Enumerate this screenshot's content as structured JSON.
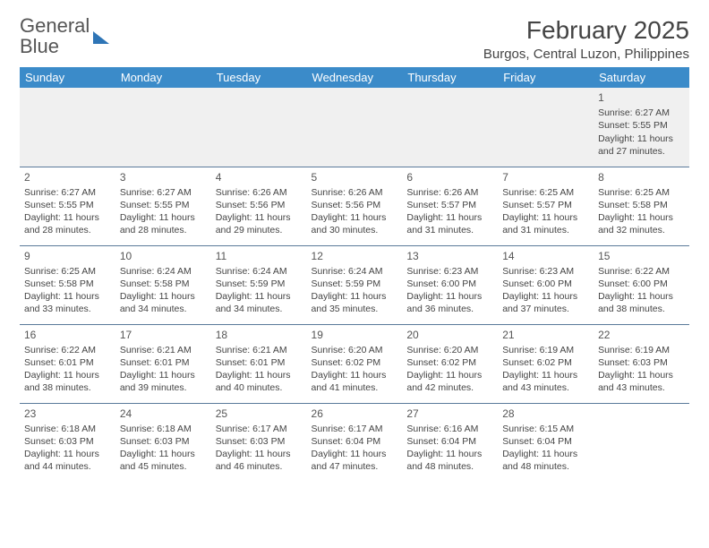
{
  "logo": {
    "text_general": "General",
    "text_blue": "Blue"
  },
  "header": {
    "month_title": "February 2025",
    "location": "Burgos, Central Luzon, Philippines"
  },
  "calendar": {
    "day_headers": [
      "Sunday",
      "Monday",
      "Tuesday",
      "Wednesday",
      "Thursday",
      "Friday",
      "Saturday"
    ],
    "header_bg": "#3b8bc9",
    "header_fg": "#ffffff",
    "row_border": "#5a7a9a",
    "first_row_bg": "#f0f0f0",
    "weeks": [
      [
        null,
        null,
        null,
        null,
        null,
        null,
        {
          "d": "1",
          "sr": "6:27 AM",
          "ss": "5:55 PM",
          "dl": "11 hours and 27 minutes."
        }
      ],
      [
        {
          "d": "2",
          "sr": "6:27 AM",
          "ss": "5:55 PM",
          "dl": "11 hours and 28 minutes."
        },
        {
          "d": "3",
          "sr": "6:27 AM",
          "ss": "5:55 PM",
          "dl": "11 hours and 28 minutes."
        },
        {
          "d": "4",
          "sr": "6:26 AM",
          "ss": "5:56 PM",
          "dl": "11 hours and 29 minutes."
        },
        {
          "d": "5",
          "sr": "6:26 AM",
          "ss": "5:56 PM",
          "dl": "11 hours and 30 minutes."
        },
        {
          "d": "6",
          "sr": "6:26 AM",
          "ss": "5:57 PM",
          "dl": "11 hours and 31 minutes."
        },
        {
          "d": "7",
          "sr": "6:25 AM",
          "ss": "5:57 PM",
          "dl": "11 hours and 31 minutes."
        },
        {
          "d": "8",
          "sr": "6:25 AM",
          "ss": "5:58 PM",
          "dl": "11 hours and 32 minutes."
        }
      ],
      [
        {
          "d": "9",
          "sr": "6:25 AM",
          "ss": "5:58 PM",
          "dl": "11 hours and 33 minutes."
        },
        {
          "d": "10",
          "sr": "6:24 AM",
          "ss": "5:58 PM",
          "dl": "11 hours and 34 minutes."
        },
        {
          "d": "11",
          "sr": "6:24 AM",
          "ss": "5:59 PM",
          "dl": "11 hours and 34 minutes."
        },
        {
          "d": "12",
          "sr": "6:24 AM",
          "ss": "5:59 PM",
          "dl": "11 hours and 35 minutes."
        },
        {
          "d": "13",
          "sr": "6:23 AM",
          "ss": "6:00 PM",
          "dl": "11 hours and 36 minutes."
        },
        {
          "d": "14",
          "sr": "6:23 AM",
          "ss": "6:00 PM",
          "dl": "11 hours and 37 minutes."
        },
        {
          "d": "15",
          "sr": "6:22 AM",
          "ss": "6:00 PM",
          "dl": "11 hours and 38 minutes."
        }
      ],
      [
        {
          "d": "16",
          "sr": "6:22 AM",
          "ss": "6:01 PM",
          "dl": "11 hours and 38 minutes."
        },
        {
          "d": "17",
          "sr": "6:21 AM",
          "ss": "6:01 PM",
          "dl": "11 hours and 39 minutes."
        },
        {
          "d": "18",
          "sr": "6:21 AM",
          "ss": "6:01 PM",
          "dl": "11 hours and 40 minutes."
        },
        {
          "d": "19",
          "sr": "6:20 AM",
          "ss": "6:02 PM",
          "dl": "11 hours and 41 minutes."
        },
        {
          "d": "20",
          "sr": "6:20 AM",
          "ss": "6:02 PM",
          "dl": "11 hours and 42 minutes."
        },
        {
          "d": "21",
          "sr": "6:19 AM",
          "ss": "6:02 PM",
          "dl": "11 hours and 43 minutes."
        },
        {
          "d": "22",
          "sr": "6:19 AM",
          "ss": "6:03 PM",
          "dl": "11 hours and 43 minutes."
        }
      ],
      [
        {
          "d": "23",
          "sr": "6:18 AM",
          "ss": "6:03 PM",
          "dl": "11 hours and 44 minutes."
        },
        {
          "d": "24",
          "sr": "6:18 AM",
          "ss": "6:03 PM",
          "dl": "11 hours and 45 minutes."
        },
        {
          "d": "25",
          "sr": "6:17 AM",
          "ss": "6:03 PM",
          "dl": "11 hours and 46 minutes."
        },
        {
          "d": "26",
          "sr": "6:17 AM",
          "ss": "6:04 PM",
          "dl": "11 hours and 47 minutes."
        },
        {
          "d": "27",
          "sr": "6:16 AM",
          "ss": "6:04 PM",
          "dl": "11 hours and 48 minutes."
        },
        {
          "d": "28",
          "sr": "6:15 AM",
          "ss": "6:04 PM",
          "dl": "11 hours and 48 minutes."
        },
        null
      ]
    ],
    "labels": {
      "sunrise": "Sunrise: ",
      "sunset": "Sunset: ",
      "daylight": "Daylight: "
    }
  }
}
